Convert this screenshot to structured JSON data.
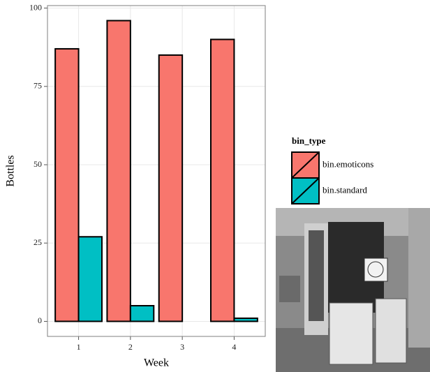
{
  "chart_data": {
    "type": "bar",
    "xlabel": "Week",
    "ylabel": "Bottles",
    "categories": [
      "1",
      "2",
      "3",
      "4"
    ],
    "series": [
      {
        "name": "bin.emoticons",
        "color": "#F8766D",
        "values": [
          87,
          96,
          85,
          90
        ]
      },
      {
        "name": "bin.standard",
        "color": "#00BFC4",
        "values": [
          27,
          5,
          0,
          1
        ]
      }
    ],
    "ylim": [
      -4.8,
      100.8
    ],
    "yticks": [
      0,
      25,
      50,
      75,
      100
    ],
    "grid": true,
    "legend_title": "bin_type",
    "legend": "right"
  }
}
